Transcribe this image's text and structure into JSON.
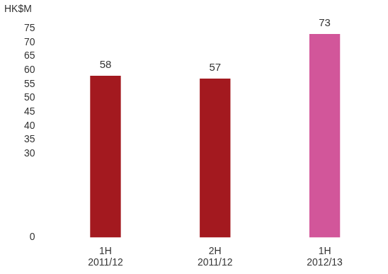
{
  "chart_data": {
    "type": "bar",
    "ylabel": "HK$M",
    "categories": [
      "1H 2011/12",
      "2H 2011/12",
      "1H 2012/13"
    ],
    "values": [
      58,
      57,
      73
    ],
    "colors": [
      "#a3191f",
      "#a3191f",
      "#d2569a"
    ],
    "ylim": [
      0,
      75
    ],
    "yticks": [
      0,
      30,
      35,
      40,
      45,
      50,
      55,
      60,
      65,
      70,
      75
    ],
    "grid": false,
    "data_labels": true
  }
}
